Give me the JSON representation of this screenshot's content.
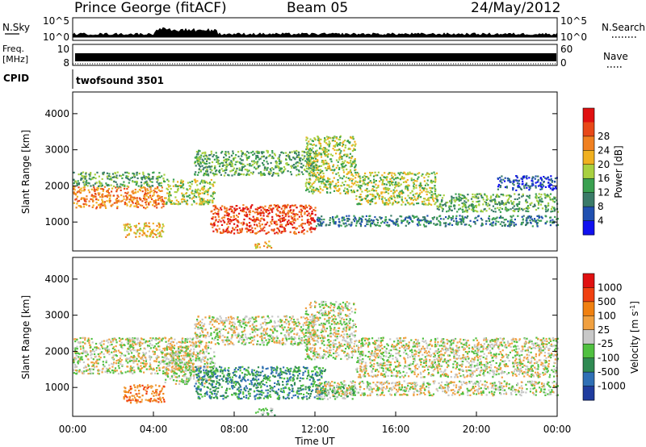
{
  "header": {
    "station": "Prince George (fitACF)",
    "beam": "Beam 05",
    "date": "24/May/2012"
  },
  "panels": {
    "nsky_label": "N.Sky",
    "nsky_ticks": [
      "10^5",
      "10^0"
    ],
    "nsearch_label": "N.Search",
    "freq_label_top": "Freq.",
    "freq_label_unit": "[MHz]",
    "freq_ticks": [
      "10",
      "8"
    ],
    "nave_label": "Nave",
    "nave_ticks": [
      "60",
      "0"
    ],
    "cpid_label": "CPID",
    "cpid_value": "twofsound 3501"
  },
  "chart_data": [
    {
      "type": "heatmap",
      "name": "power",
      "xlabel": "Time UT",
      "ylabel": "Slant Range [km]",
      "x_ticks": [
        "00:00",
        "04:00",
        "08:00",
        "12:00",
        "16:00",
        "20:00",
        "00:00"
      ],
      "xlim_hours": [
        0,
        24
      ],
      "y_ticks": [
        1000,
        2000,
        3000,
        4000
      ],
      "ylim_km": [
        200,
        4600
      ],
      "colorbar": {
        "label": "Power [dB]",
        "ticks": [
          "4",
          "8",
          "12",
          "16",
          "20",
          "24",
          "28"
        ],
        "colors": [
          "#1010f0",
          "#2050b0",
          "#3a7a68",
          "#3aa050",
          "#a8d040",
          "#f0b020",
          "#f08020",
          "#e84818",
          "#e01010"
        ]
      },
      "echo_regions": [
        {
          "t0": 0,
          "t1": 4.5,
          "r0": 1400,
          "r1": 2000,
          "level": 6
        },
        {
          "t0": 0,
          "t1": 4.5,
          "r0": 2000,
          "r1": 2400,
          "level": 3
        },
        {
          "t0": 2.5,
          "t1": 4.5,
          "r0": 600,
          "r1": 1000,
          "level": 5
        },
        {
          "t0": 4.5,
          "t1": 7,
          "r0": 1500,
          "r1": 2200,
          "level": 4
        },
        {
          "t0": 6.8,
          "t1": 12,
          "r0": 700,
          "r1": 1500,
          "level": 7
        },
        {
          "t0": 9,
          "t1": 9.8,
          "r0": 300,
          "r1": 500,
          "level": 5
        },
        {
          "t0": 6,
          "t1": 12,
          "r0": 2300,
          "r1": 3000,
          "level": 3
        },
        {
          "t0": 11.5,
          "t1": 14,
          "r0": 1800,
          "r1": 3400,
          "level": 4
        },
        {
          "t0": 14,
          "t1": 18,
          "r0": 1500,
          "r1": 2400,
          "level": 4
        },
        {
          "t0": 12,
          "t1": 24,
          "r0": 900,
          "r1": 1200,
          "level": 2
        },
        {
          "t0": 18,
          "t1": 24,
          "r0": 1300,
          "r1": 1800,
          "level": 3
        },
        {
          "t0": 21,
          "t1": 24,
          "r0": 1900,
          "r1": 2300,
          "level": 1
        }
      ]
    },
    {
      "type": "heatmap",
      "name": "velocity",
      "xlabel": "Time UT",
      "ylabel": "Slant Range [km]",
      "x_ticks": [
        "00:00",
        "04:00",
        "08:00",
        "12:00",
        "16:00",
        "20:00",
        "00:00"
      ],
      "xlim_hours": [
        0,
        24
      ],
      "y_ticks": [
        1000,
        2000,
        3000,
        4000
      ],
      "ylim_km": [
        200,
        4600
      ],
      "colorbar": {
        "label": "Velocity [m s-1]",
        "ticks": [
          "1000",
          "500",
          "100",
          "25",
          "-25",
          "-100",
          "-500",
          "-1000"
        ],
        "colors": [
          "#1f3c9e",
          "#2f6fb5",
          "#2f8a52",
          "#50c040",
          "#c8c8c8",
          "#f0a040",
          "#f08010",
          "#f04010",
          "#e01010"
        ]
      },
      "echo_regions": [
        {
          "t0": 0,
          "t1": 6,
          "r0": 1400,
          "r1": 2400,
          "level": 4
        },
        {
          "t0": 2.5,
          "t1": 4.5,
          "r0": 600,
          "r1": 1100,
          "level": 6
        },
        {
          "t0": 4.5,
          "t1": 7,
          "r0": 1100,
          "r1": 2200,
          "level": 4
        },
        {
          "t0": 6,
          "t1": 12.5,
          "r0": 700,
          "r1": 1600,
          "level": 2
        },
        {
          "t0": 9,
          "t1": 10,
          "r0": 250,
          "r1": 450,
          "level": 3
        },
        {
          "t0": 12,
          "t1": 14,
          "r0": 700,
          "r1": 1100,
          "level": 3
        },
        {
          "t0": 6,
          "t1": 12,
          "r0": 2200,
          "r1": 3000,
          "level": 4
        },
        {
          "t0": 11.5,
          "t1": 14,
          "r0": 1800,
          "r1": 3400,
          "level": 4
        },
        {
          "t0": 14,
          "t1": 24,
          "r0": 1300,
          "r1": 2400,
          "level": 4
        },
        {
          "t0": 12,
          "t1": 24,
          "r0": 800,
          "r1": 1200,
          "level": 4
        }
      ]
    }
  ]
}
